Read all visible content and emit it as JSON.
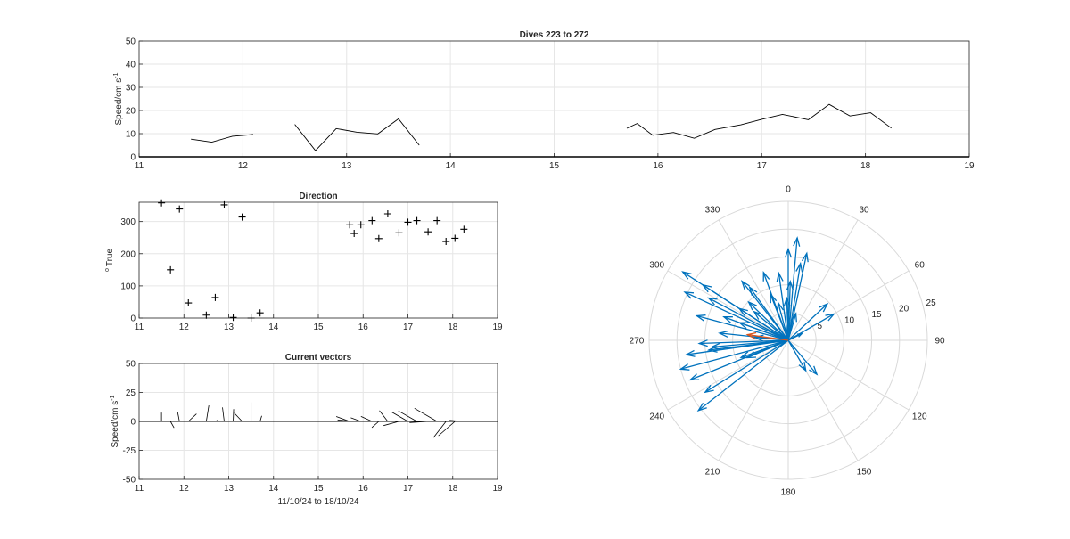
{
  "chart_data": [
    {
      "type": "line",
      "title": "Dives 223 to 272",
      "xlabel": "",
      "ylabel": "Speed/cm s",
      "ylabel_superscript": "-1",
      "xlim": [
        11,
        19
      ],
      "ylim": [
        0,
        50
      ],
      "xticks": [
        "11",
        "12",
        "13",
        "14",
        "15",
        "16",
        "17",
        "18",
        "19"
      ],
      "yticks": [
        "0",
        "10",
        "20",
        "30",
        "40",
        "50"
      ],
      "grid": true,
      "series": [
        {
          "color": "#000000",
          "segments": [
            [
              [
                11.5,
                7.6
              ],
              [
                11.7,
                6.3
              ],
              [
                11.9,
                8.9
              ],
              [
                12.1,
                9.6
              ]
            ],
            [
              [
                12.5,
                14.0
              ],
              [
                12.7,
                2.7
              ],
              [
                12.9,
                12.2
              ],
              [
                13.1,
                10.6
              ],
              [
                13.3,
                9.9
              ],
              [
                13.5,
                16.4
              ],
              [
                13.7,
                5.0
              ]
            ],
            [
              [
                15.7,
                12.3
              ],
              [
                15.8,
                14.4
              ],
              [
                15.95,
                9.3
              ],
              [
                16.15,
                10.5
              ],
              [
                16.35,
                8.0
              ],
              [
                16.55,
                11.8
              ],
              [
                16.8,
                13.8
              ],
              [
                17.0,
                16.2
              ],
              [
                17.2,
                18.3
              ],
              [
                17.45,
                16.0
              ],
              [
                17.65,
                22.6
              ],
              [
                17.85,
                17.6
              ],
              [
                18.05,
                19.0
              ],
              [
                18.25,
                12.4
              ]
            ]
          ]
        }
      ]
    },
    {
      "type": "scatter",
      "title": "Direction",
      "xlabel": "",
      "ylabel": "True",
      "ylabel_prefix": "o",
      "xlim": [
        11,
        19
      ],
      "ylim": [
        0,
        360
      ],
      "xticks": [
        "11",
        "12",
        "13",
        "14",
        "15",
        "16",
        "17",
        "18",
        "19"
      ],
      "yticks": [
        "0",
        "100",
        "200",
        "300"
      ],
      "grid": true,
      "marker": "+",
      "x": [
        11.5,
        11.7,
        11.9,
        12.1,
        12.5,
        12.7,
        12.9,
        13.1,
        13.3,
        13.5,
        13.7,
        15.7,
        15.8,
        15.95,
        16.2,
        16.35,
        16.55,
        16.8,
        17.0,
        17.2,
        17.45,
        17.65,
        17.85,
        18.05,
        18.25
      ],
      "y": [
        358,
        150,
        339,
        47,
        9,
        64,
        352,
        2,
        314,
        0,
        16,
        290,
        263,
        290,
        303,
        247,
        324,
        265,
        298,
        303,
        268,
        303,
        238,
        248,
        276
      ]
    },
    {
      "type": "line",
      "subtype": "quiver",
      "title": "Current vectors",
      "xlabel": "11/10/24 to 18/10/24",
      "ylabel": "Speed/cm s",
      "ylabel_superscript": "-1",
      "xlim": [
        11,
        19
      ],
      "ylim": [
        -50,
        50
      ],
      "xticks": [
        "11",
        "12",
        "13",
        "14",
        "15",
        "16",
        "17",
        "18",
        "19"
      ],
      "yticks": [
        "-50",
        "-25",
        "0",
        "25",
        "50"
      ],
      "grid": true,
      "vectors": [
        {
          "x": 11.5,
          "u": 0.0,
          "v": 7.6
        },
        {
          "x": 11.7,
          "u": 3.1,
          "v": -5.5
        },
        {
          "x": 11.9,
          "u": -1.6,
          "v": 8.4
        },
        {
          "x": 12.1,
          "u": 7.0,
          "v": 6.5
        },
        {
          "x": 12.5,
          "u": 2.2,
          "v": 13.8
        },
        {
          "x": 12.7,
          "u": 2.4,
          "v": 1.2
        },
        {
          "x": 12.9,
          "u": -1.5,
          "v": 12.1
        },
        {
          "x": 13.1,
          "u": 0.4,
          "v": 10.6
        },
        {
          "x": 13.3,
          "u": -6.8,
          "v": 7.2
        },
        {
          "x": 13.5,
          "u": 0.0,
          "v": 16.4
        },
        {
          "x": 13.7,
          "u": 1.4,
          "v": 4.8
        },
        {
          "x": 15.7,
          "u": -11.6,
          "v": 4.2
        },
        {
          "x": 15.8,
          "u": -14.3,
          "v": 1.3
        },
        {
          "x": 15.95,
          "u": -8.7,
          "v": 3.2
        },
        {
          "x": 16.2,
          "u": -9.6,
          "v": 4.3
        },
        {
          "x": 16.35,
          "u": -6.0,
          "v": -5.3
        },
        {
          "x": 16.55,
          "u": -7.2,
          "v": 9.3
        },
        {
          "x": 16.8,
          "u": -13.3,
          "v": -3.6
        },
        {
          "x": 17.0,
          "u": -14.0,
          "v": 8.1
        },
        {
          "x": 17.2,
          "u": -16.0,
          "v": 9.1
        },
        {
          "x": 17.45,
          "u": -16.0,
          "v": -1.0
        },
        {
          "x": 17.65,
          "u": -19.5,
          "v": 11.3
        },
        {
          "x": 17.85,
          "u": -10.8,
          "v": -13.9
        },
        {
          "x": 18.05,
          "u": -14.3,
          "v": -12.4
        },
        {
          "x": 18.25,
          "u": -12.4,
          "v": 0.9
        }
      ]
    },
    {
      "type": "line",
      "subtype": "compass",
      "title": "",
      "angle_ticks": [
        "0",
        "30",
        "60",
        "90",
        "120",
        "150",
        "180",
        "210",
        "240",
        "270",
        "300",
        "330"
      ],
      "radial_ticks": [
        "5",
        "10",
        "15",
        "20",
        "25"
      ],
      "rlim": [
        0,
        25
      ],
      "grid": true,
      "vector_color": "#0072BD",
      "mean_color": "#D95319",
      "vectors": [
        {
          "dir": 358,
          "speed": 7.6
        },
        {
          "dir": 150,
          "speed": 6.3
        },
        {
          "dir": 339,
          "speed": 8.9
        },
        {
          "dir": 47,
          "speed": 9.6
        },
        {
          "dir": 9,
          "speed": 14.0
        },
        {
          "dir": 64,
          "speed": 2.7
        },
        {
          "dir": 352,
          "speed": 12.2
        },
        {
          "dir": 2,
          "speed": 10.6
        },
        {
          "dir": 314,
          "speed": 9.9
        },
        {
          "dir": 0,
          "speed": 16.4
        },
        {
          "dir": 16,
          "speed": 5.0
        },
        {
          "dir": 290,
          "speed": 12.3
        },
        {
          "dir": 263,
          "speed": 14.4
        },
        {
          "dir": 290,
          "speed": 9.3
        },
        {
          "dir": 303,
          "speed": 10.5
        },
        {
          "dir": 247,
          "speed": 8.0
        },
        {
          "dir": 324,
          "speed": 11.8
        },
        {
          "dir": 265,
          "speed": 13.8
        },
        {
          "dir": 298,
          "speed": 16.2
        },
        {
          "dir": 303,
          "speed": 18.3
        },
        {
          "dir": 268,
          "speed": 16.0
        },
        {
          "dir": 303,
          "speed": 22.6
        },
        {
          "dir": 238,
          "speed": 17.6
        },
        {
          "dir": 248,
          "speed": 19.0
        },
        {
          "dir": 276,
          "speed": 12.4
        },
        {
          "dir": 322,
          "speed": 13.5
        },
        {
          "dir": 5,
          "speed": 18.5
        },
        {
          "dir": 12,
          "speed": 16.0
        },
        {
          "dir": 340,
          "speed": 13.0
        },
        {
          "dir": 295,
          "speed": 20.5
        },
        {
          "dir": 255,
          "speed": 20.0
        },
        {
          "dir": 232,
          "speed": 20.5
        },
        {
          "dir": 285,
          "speed": 17.0
        },
        {
          "dir": 262,
          "speed": 18.5
        },
        {
          "dir": 345,
          "speed": 7.0
        },
        {
          "dir": 60,
          "speed": 9.5
        },
        {
          "dir": 140,
          "speed": 8.0
        },
        {
          "dir": 250,
          "speed": 9.0
        },
        {
          "dir": 310,
          "speed": 8.0
        },
        {
          "dir": 275,
          "speed": 6.0
        }
      ],
      "mean_vector": {
        "dir": 278,
        "speed": 7.4
      }
    }
  ]
}
